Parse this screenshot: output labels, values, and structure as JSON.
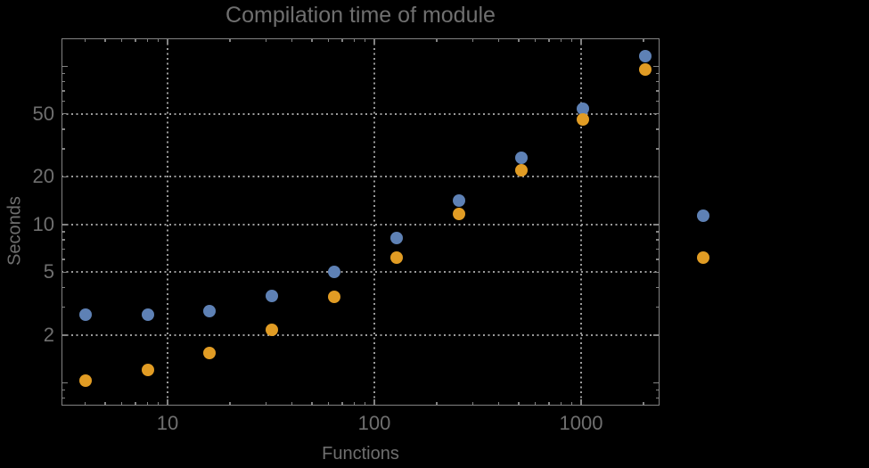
{
  "colors": {
    "background": "#000000",
    "frame": "#828282",
    "grid": "#9B9B9B",
    "text": "#6F6F6F",
    "series_blue": "#5E81B5",
    "series_orange": "#E19C24"
  },
  "chart_data": {
    "type": "scatter",
    "title": "Compilation time of module",
    "xlabel": "Functions",
    "ylabel": "Seconds",
    "x_scale": "log",
    "y_scale": "log",
    "xlim": [
      3.07,
      2394
    ],
    "ylim": [
      0.717,
      150
    ],
    "grid": "dotted",
    "x": [
      4,
      8,
      16,
      32,
      64,
      128,
      256,
      512,
      1024,
      2048
    ],
    "series": [
      {
        "name": "series-1-blue",
        "color": "#5E81B5",
        "values": [
          2.7,
          2.7,
          2.85,
          3.55,
          5.0,
          8.2,
          14.2,
          26.5,
          54,
          115
        ]
      },
      {
        "name": "series-2-orange",
        "color": "#E19C24",
        "values": [
          1.03,
          1.2,
          1.55,
          2.15,
          3.5,
          6.2,
          11.7,
          22,
          46,
          95
        ]
      }
    ],
    "x_axis": {
      "gridlines": [
        10,
        100,
        1000
      ],
      "labeled_values": [
        10,
        100,
        1000
      ],
      "tick_labels": [
        "10",
        "100",
        "1000"
      ],
      "major_ticks": [
        10,
        100,
        1000
      ],
      "minor_ticks": [
        4,
        5,
        6,
        7,
        8,
        9,
        20,
        30,
        40,
        50,
        60,
        70,
        80,
        90,
        200,
        300,
        400,
        500,
        600,
        700,
        800,
        900,
        2000
      ]
    },
    "y_axis": {
      "gridlines": [
        2,
        5,
        10,
        20,
        50
      ],
      "labeled_values": [
        2,
        5,
        10,
        20,
        50
      ],
      "tick_labels": [
        "2",
        "5",
        "10",
        "20",
        "50"
      ],
      "major_ticks": [
        1,
        2,
        5,
        10,
        20,
        50,
        100
      ],
      "minor_ticks": [
        0.8,
        0.9,
        3,
        4,
        6,
        7,
        8,
        9,
        30,
        40,
        60,
        70,
        80,
        90
      ]
    },
    "legend_position": "right-outside",
    "legend": [
      {
        "label": "",
        "color": "#5E81B5"
      },
      {
        "label": "",
        "color": "#E19C24"
      }
    ]
  }
}
